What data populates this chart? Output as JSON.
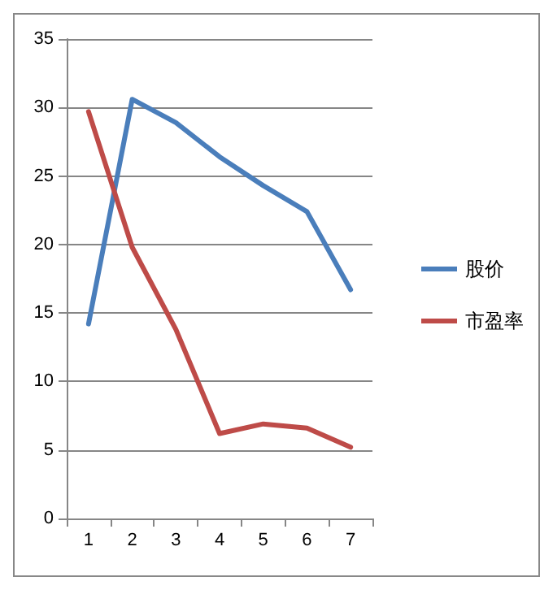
{
  "chart_data": {
    "type": "line",
    "categories": [
      "1",
      "2",
      "3",
      "4",
      "5",
      "6",
      "7"
    ],
    "series": [
      {
        "name": "股价",
        "color": "#4a7ebb",
        "values": [
          14.2,
          30.6,
          28.9,
          26.4,
          24.3,
          22.4,
          16.7
        ]
      },
      {
        "name": "市盈率",
        "color": "#be4b48",
        "values": [
          29.7,
          19.8,
          13.8,
          6.2,
          6.9,
          6.6,
          5.2
        ]
      }
    ],
    "ylim": [
      0,
      35
    ],
    "yticks": [
      0,
      5,
      10,
      15,
      20,
      25,
      30,
      35
    ],
    "grid": "y",
    "legend": "right",
    "marker": "none",
    "line_style": "solid"
  }
}
